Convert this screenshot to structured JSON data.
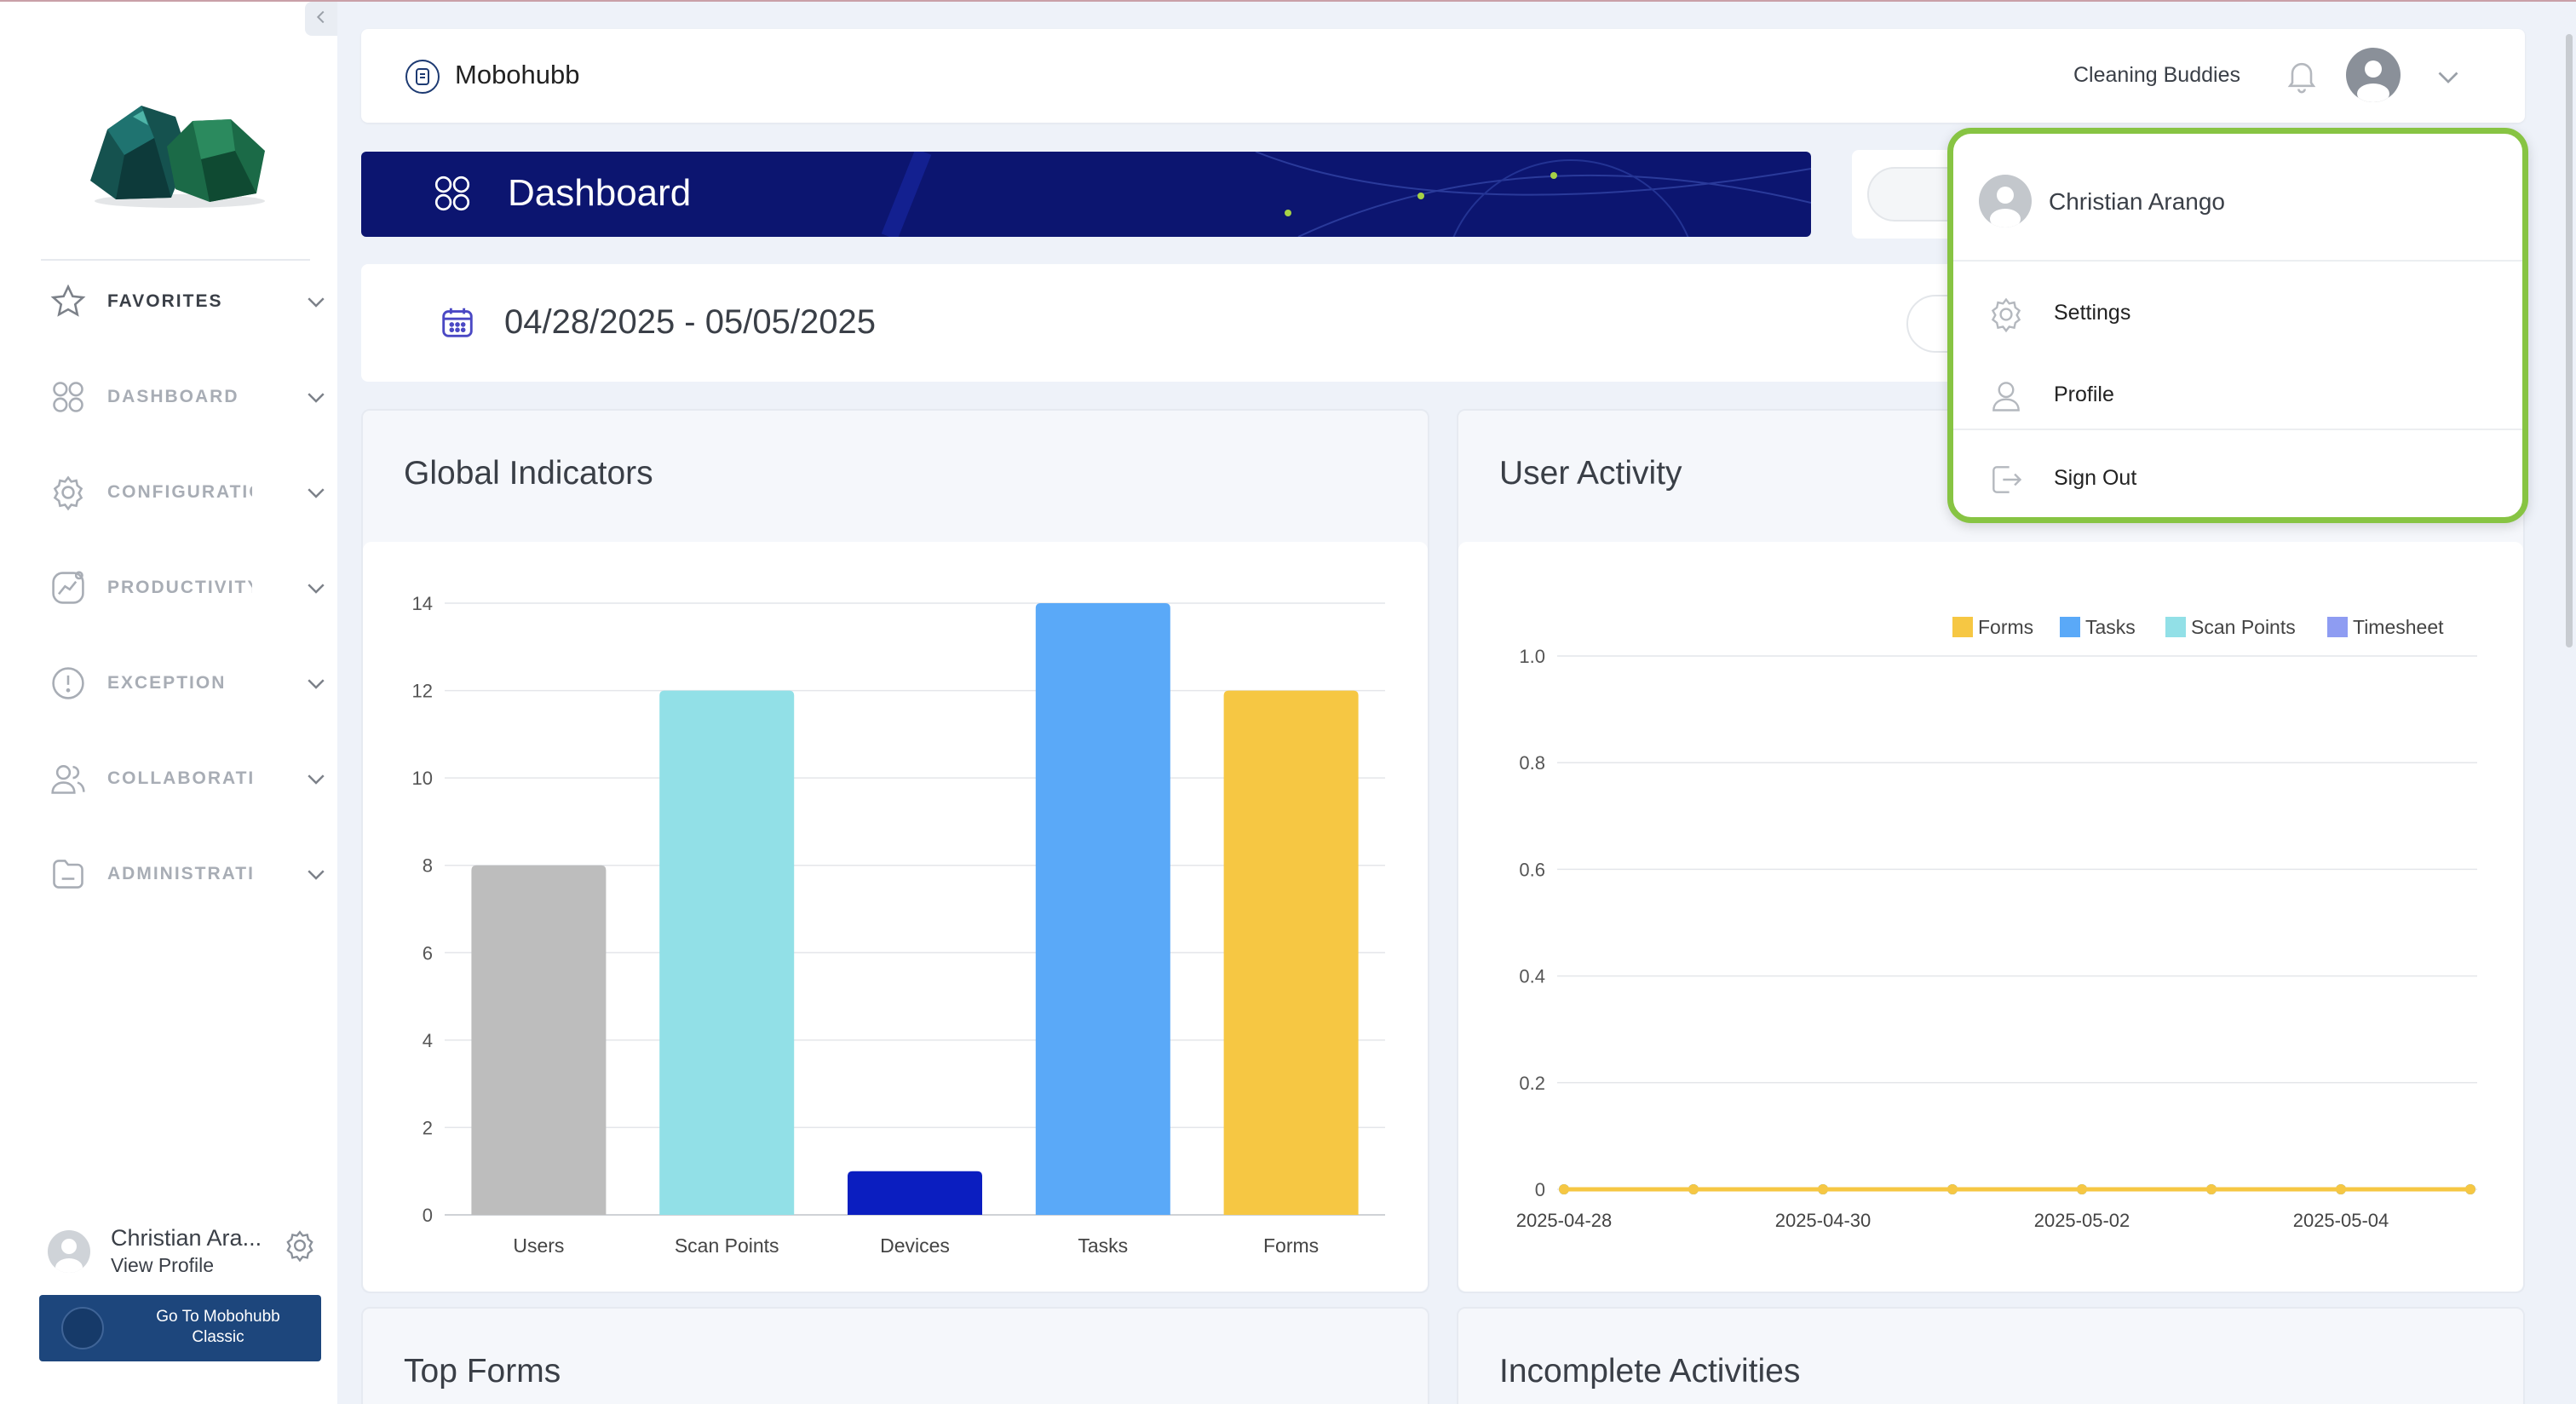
{
  "sidebar": {
    "items": [
      {
        "label": "FAVORITES",
        "icon": "star-icon"
      },
      {
        "label": "DASHBOARD",
        "icon": "grid-icon"
      },
      {
        "label": "CONFIGURATION",
        "icon": "gear-icon"
      },
      {
        "label": "PRODUCTIVITY",
        "icon": "trend-icon"
      },
      {
        "label": "EXCEPTION",
        "icon": "alert-icon"
      },
      {
        "label": "COLLABORATION",
        "icon": "users-icon"
      },
      {
        "label": "ADMINISTRATION",
        "icon": "folder-icon"
      }
    ],
    "user_name": "Christian Ara...",
    "view_profile": "View Profile",
    "classic_button": "Go To Mobohubb Classic"
  },
  "header": {
    "brand": "Mobohubb",
    "company": "Cleaning Buddies"
  },
  "banner": {
    "title": "Dashboard"
  },
  "date_range": "04/28/2025 - 05/05/2025",
  "cards": {
    "global": "Global Indicators",
    "activity": "User Activity",
    "top_forms": "Top Forms",
    "incomplete": "Incomplete Activities"
  },
  "dropdown": {
    "user_name": "Christian Arango",
    "settings": "Settings",
    "profile": "Profile",
    "sign_out": "Sign Out"
  },
  "colors": {
    "accent_green": "#87c443",
    "banner_navy": "#0c1570",
    "classic_blue": "#1d467c"
  },
  "chart_data": [
    {
      "type": "bar",
      "title": "Global Indicators",
      "categories": [
        "Users",
        "Scan Points",
        "Devices",
        "Tasks",
        "Forms"
      ],
      "values": [
        8,
        12,
        1,
        14,
        12
      ],
      "colors": [
        "#bdbdbd",
        "#92e0e7",
        "#0b1ec0",
        "#5aa9f8",
        "#f6c743"
      ],
      "yticks": [
        "0",
        "2",
        "4",
        "6",
        "8",
        "10",
        "12",
        "14"
      ],
      "ylim": [
        0,
        14
      ],
      "grid": true
    },
    {
      "type": "line",
      "title": "User Activity",
      "x": [
        "2025-04-28",
        "2025-04-29",
        "2025-04-30",
        "2025-05-01",
        "2025-05-02",
        "2025-05-03",
        "2025-05-04",
        "2025-05-05"
      ],
      "xticks": [
        "2025-04-28",
        "2025-04-30",
        "2025-05-02",
        "2025-05-04"
      ],
      "yticks": [
        "0",
        "0.2",
        "0.4",
        "0.6",
        "0.8",
        "1.0"
      ],
      "ylim": [
        0,
        1
      ],
      "legend_position": "top-right",
      "series": [
        {
          "name": "Forms",
          "color": "#f6c743",
          "values": [
            0,
            0,
            0,
            0,
            0,
            0,
            0,
            0
          ]
        },
        {
          "name": "Tasks",
          "color": "#5aa9f8",
          "values": [
            0,
            0,
            0,
            0,
            0,
            0,
            0,
            0
          ]
        },
        {
          "name": "Scan Points",
          "color": "#92e0e7",
          "values": [
            0,
            0,
            0,
            0,
            0,
            0,
            0,
            0
          ]
        },
        {
          "name": "Timesheet",
          "color": "#8e9cf2",
          "values": [
            0,
            0,
            0,
            0,
            0,
            0,
            0,
            0
          ]
        }
      ],
      "grid": true
    }
  ]
}
